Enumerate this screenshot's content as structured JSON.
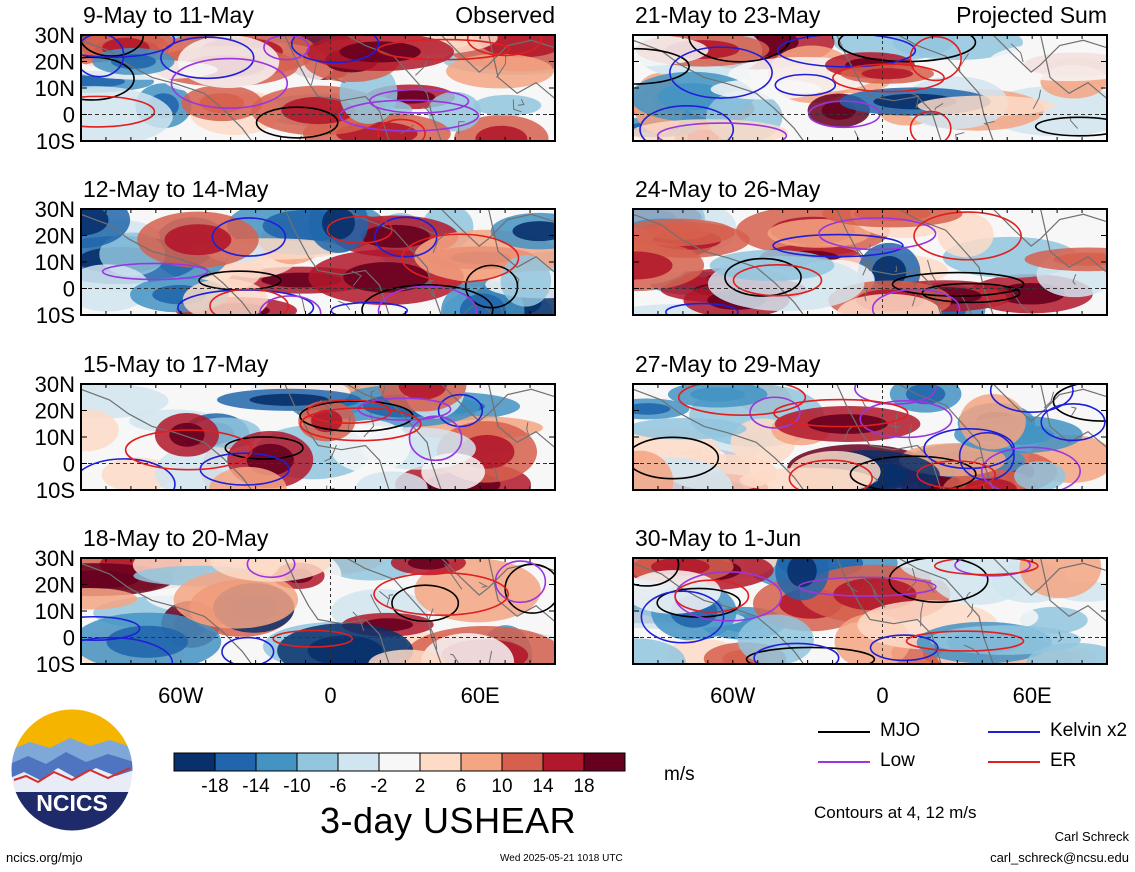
{
  "columns": [
    {
      "tag": "Observed",
      "panels": [
        {
          "date_range": "9-May to 11-May"
        },
        {
          "date_range": "12-May to 14-May"
        },
        {
          "date_range": "15-May to 17-May"
        },
        {
          "date_range": "18-May to 20-May"
        }
      ]
    },
    {
      "tag": "Projected Sum",
      "panels": [
        {
          "date_range": "21-May to 23-May"
        },
        {
          "date_range": "24-May to 26-May"
        },
        {
          "date_range": "27-May to 29-May"
        },
        {
          "date_range": "30-May to 1-Jun"
        }
      ]
    }
  ],
  "lat_ticks": [
    "30N",
    "20N",
    "10N",
    "0",
    "10S"
  ],
  "lon_ticks": [
    "60W",
    "0",
    "60E"
  ],
  "colorbar": {
    "labels": [
      "-18",
      "-14",
      "-10",
      "-6",
      "-2",
      "2",
      "6",
      "10",
      "14",
      "18"
    ],
    "colors": [
      "#08306b",
      "#2166ac",
      "#4393c3",
      "#92c5de",
      "#d1e5f0",
      "#f7f7f7",
      "#fddbc7",
      "#f4a582",
      "#d6604d",
      "#b2182b",
      "#67001f"
    ],
    "units": "m/s",
    "title": "3-day USHEAR"
  },
  "legend": {
    "items": [
      {
        "label": "MJO",
        "color": "#000000"
      },
      {
        "label": "Kelvin x2",
        "color": "#1f1fd8"
      },
      {
        "label": "Low",
        "color": "#9a36e0"
      },
      {
        "label": "ER",
        "color": "#e01f1f"
      }
    ],
    "note": "Contours at 4, 12 m/s"
  },
  "logo": {
    "text": "NCICS"
  },
  "footer": {
    "left": "ncics.org/mjo",
    "center": "Wed 2025-05-21 1018 UTC",
    "author": "Carl Schreck",
    "email": "carl_schreck@ncsu.edu"
  },
  "chart_data": {
    "type": "heatmap",
    "variable": "3-day USHEAR",
    "units": "m/s",
    "lat_range": [
      "10S",
      "30N"
    ],
    "lon_range": [
      "100W",
      "90E"
    ],
    "contours_m_per_s": [
      4,
      12
    ]
  }
}
